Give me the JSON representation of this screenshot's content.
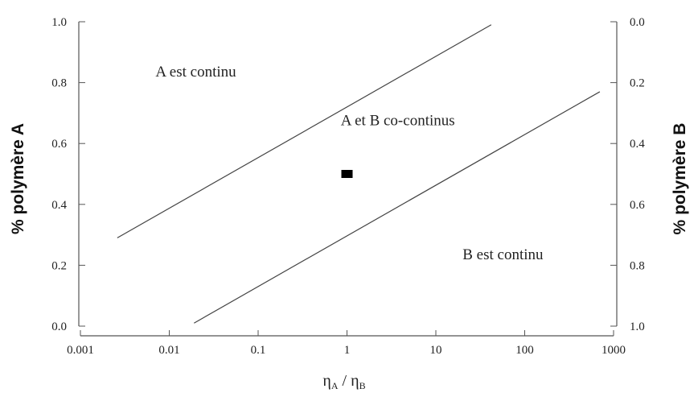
{
  "chart_data": {
    "type": "line",
    "xlabel": {
      "eta": "η",
      "sub_a": "A",
      "sep": " / ",
      "sub_b": "B"
    },
    "ylabel_left": "% polymère A",
    "ylabel_right": "% polymère B",
    "x_scale": "log",
    "xlim": [
      0.001,
      1000
    ],
    "ylim": [
      0,
      1
    ],
    "x_ticks": [
      {
        "value": 0.001,
        "label": "0.001"
      },
      {
        "value": 0.01,
        "label": "0.01"
      },
      {
        "value": 0.1,
        "label": "0.1"
      },
      {
        "value": 1,
        "label": "1"
      },
      {
        "value": 10,
        "label": "10"
      },
      {
        "value": 100,
        "label": "100"
      },
      {
        "value": 1000,
        "label": "1000"
      }
    ],
    "y_ticks_left": [
      {
        "value": 0.0,
        "label": "0.0"
      },
      {
        "value": 0.2,
        "label": "0.2"
      },
      {
        "value": 0.4,
        "label": "0.4"
      },
      {
        "value": 0.6,
        "label": "0.6"
      },
      {
        "value": 0.8,
        "label": "0.8"
      },
      {
        "value": 1.0,
        "label": "1.0"
      }
    ],
    "y_ticks_right": [
      {
        "value": 1.0,
        "label": "0.0"
      },
      {
        "value": 0.8,
        "label": "0.2"
      },
      {
        "value": 0.6,
        "label": "0.4"
      },
      {
        "value": 0.4,
        "label": "0.6"
      },
      {
        "value": 0.2,
        "label": "0.8"
      },
      {
        "value": 0.0,
        "label": "1.0"
      }
    ],
    "series": [
      {
        "x": [
          0.0026,
          42
        ],
        "y": [
          0.29,
          0.99
        ]
      },
      {
        "x": [
          0.019,
          700
        ],
        "y": [
          0.01,
          0.77
        ]
      }
    ],
    "points": [
      {
        "x": 1.0,
        "y": 0.5
      }
    ],
    "annotations": [
      {
        "text": "A est continu",
        "x": 0.007,
        "y": 0.82
      },
      {
        "text": "A et B co-continus",
        "x": 0.85,
        "y": 0.66
      },
      {
        "text": "B est continu",
        "x": 20,
        "y": 0.22
      }
    ],
    "grid": false,
    "legend": "none"
  }
}
